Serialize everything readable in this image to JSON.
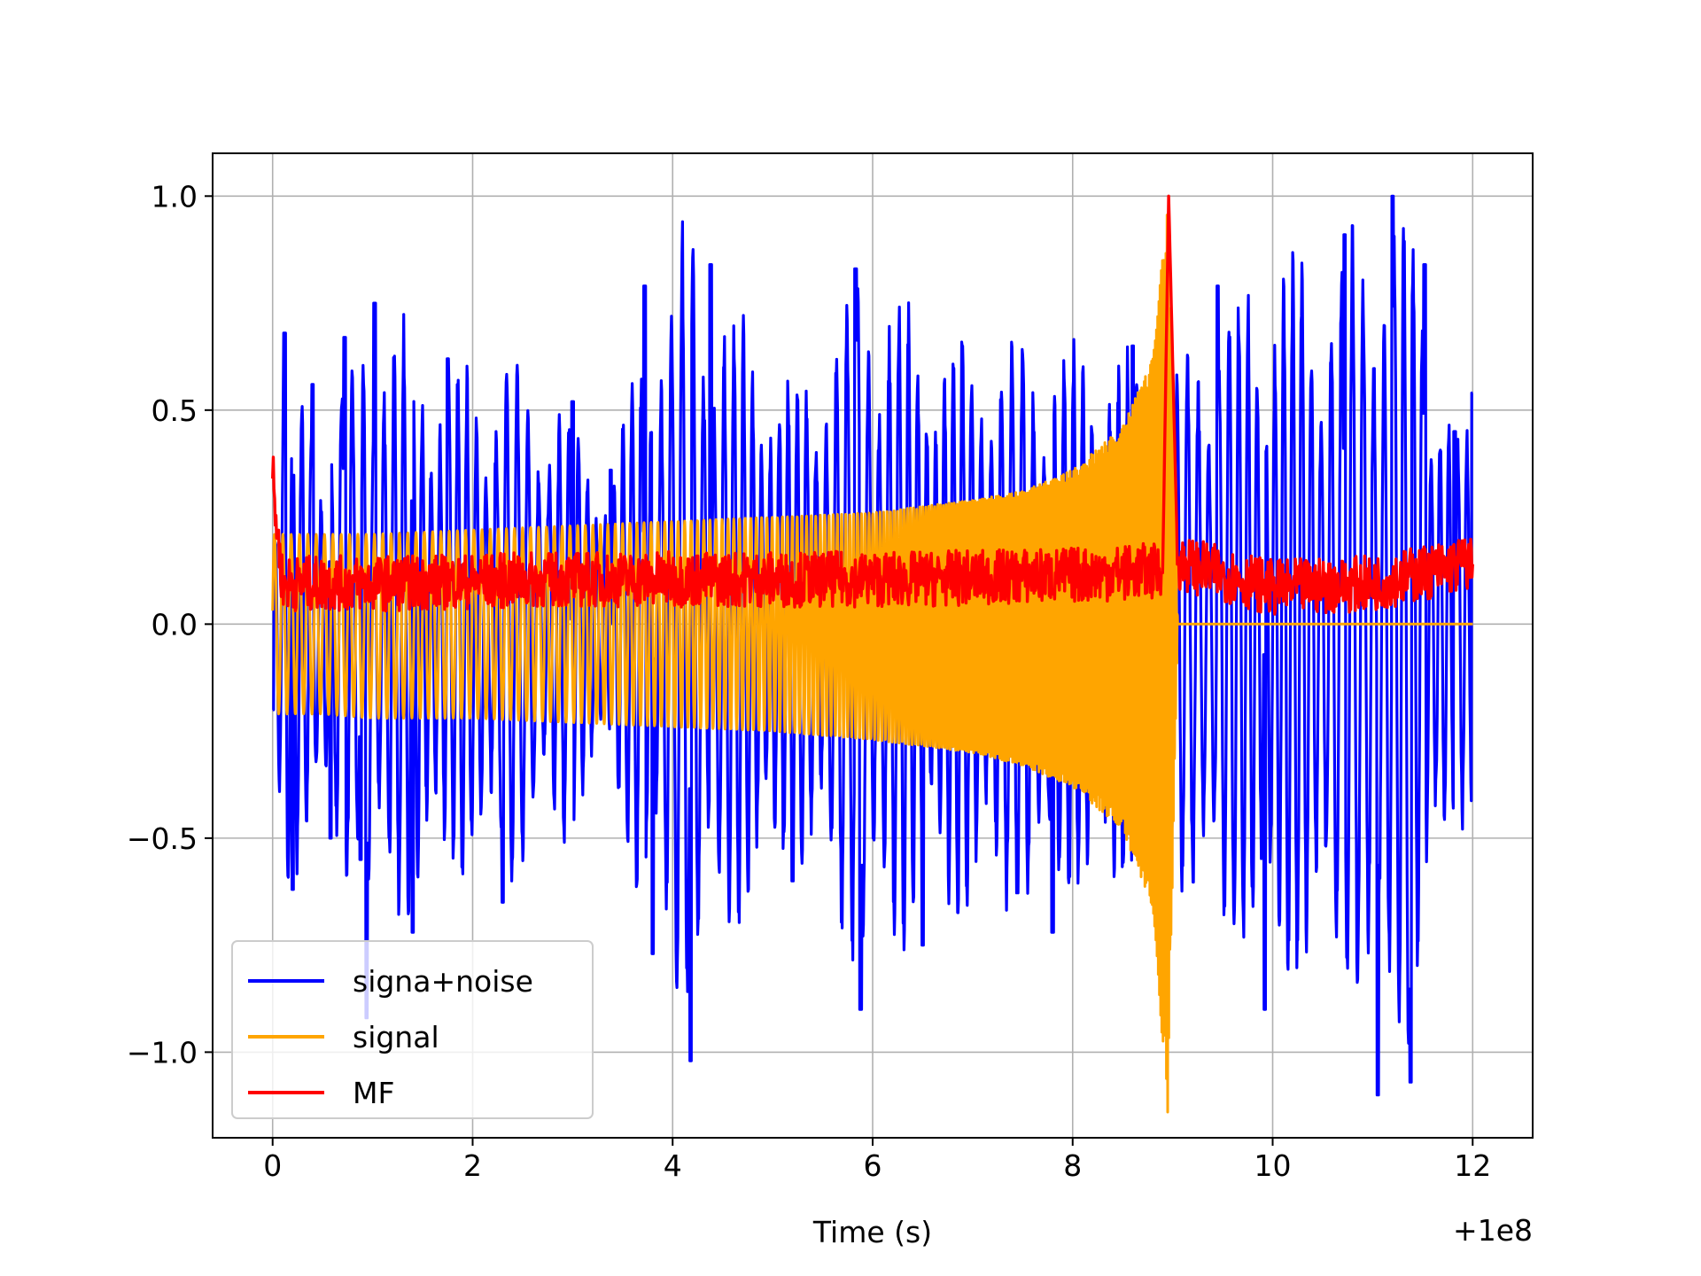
{
  "chart_data": {
    "type": "line",
    "title": "",
    "xlabel": "Time (s)",
    "ylabel": "",
    "x_offset_label": "+1e8",
    "xlim": [
      -0.6,
      12.6
    ],
    "ylim": [
      -1.2,
      1.1
    ],
    "xticks": [
      0,
      2,
      4,
      6,
      8,
      10,
      12
    ],
    "xtick_labels": [
      "0",
      "2",
      "4",
      "6",
      "8",
      "10",
      "12"
    ],
    "yticks": [
      -1.0,
      -0.5,
      0.0,
      0.5,
      1.0
    ],
    "ytick_labels": [
      "−1.0",
      "−0.5",
      "0.0",
      "0.5",
      "1.0"
    ],
    "grid": true,
    "legend_position": "lower-left",
    "series": [
      {
        "name": "signa+noise",
        "color": "#0000ff",
        "x": [
          0.0,
          0.12,
          0.2,
          0.4,
          0.58,
          0.72,
          0.88,
          0.94,
          1.02,
          1.4,
          1.75,
          2.3,
          3.0,
          3.38,
          3.72,
          3.8,
          4.18,
          4.38,
          5.2,
          5.83,
          5.88,
          6.5,
          7.8,
          8.6,
          8.92,
          9.45,
          9.92,
          10.72,
          11.05,
          11.2,
          11.38,
          11.52,
          11.82,
          12.0
        ],
        "y": [
          -0.2,
          0.68,
          -0.62,
          0.56,
          -0.5,
          0.67,
          -0.55,
          -0.92,
          0.75,
          -0.72,
          0.62,
          -0.65,
          0.52,
          0.36,
          0.79,
          -0.77,
          -1.02,
          0.84,
          -0.6,
          0.83,
          -0.9,
          -0.75,
          -0.72,
          0.65,
          -0.6,
          0.79,
          -0.9,
          0.91,
          -1.1,
          1.0,
          -1.07,
          0.84,
          0.45,
          0.54
        ]
      },
      {
        "name": "signal",
        "color": "#ffa500",
        "x": [
          0.0,
          0.5,
          1.0,
          2.0,
          3.0,
          4.0,
          5.0,
          6.0,
          7.0,
          7.5,
          8.0,
          8.5,
          8.8,
          8.95,
          9.05,
          12.0
        ],
        "y_upper": [
          0.21,
          0.21,
          0.21,
          0.22,
          0.23,
          0.24,
          0.25,
          0.26,
          0.29,
          0.31,
          0.36,
          0.46,
          0.62,
          0.98,
          0.0,
          0.0
        ],
        "y_lower": [
          -0.21,
          -0.21,
          -0.22,
          -0.22,
          -0.23,
          -0.24,
          -0.25,
          -0.27,
          -0.3,
          -0.33,
          -0.38,
          -0.48,
          -0.66,
          -1.14,
          0.0,
          0.0
        ]
      },
      {
        "name": "MF",
        "color": "#ff0000",
        "x": [
          0.0,
          0.05,
          0.1,
          1.0,
          3.0,
          6.5,
          8.0,
          8.9,
          8.96,
          9.05,
          10.0,
          11.0,
          12.0
        ],
        "y": [
          0.34,
          0.2,
          0.09,
          0.09,
          0.1,
          0.1,
          0.11,
          0.12,
          1.0,
          0.14,
          0.08,
          0.09,
          0.14
        ]
      }
    ]
  }
}
